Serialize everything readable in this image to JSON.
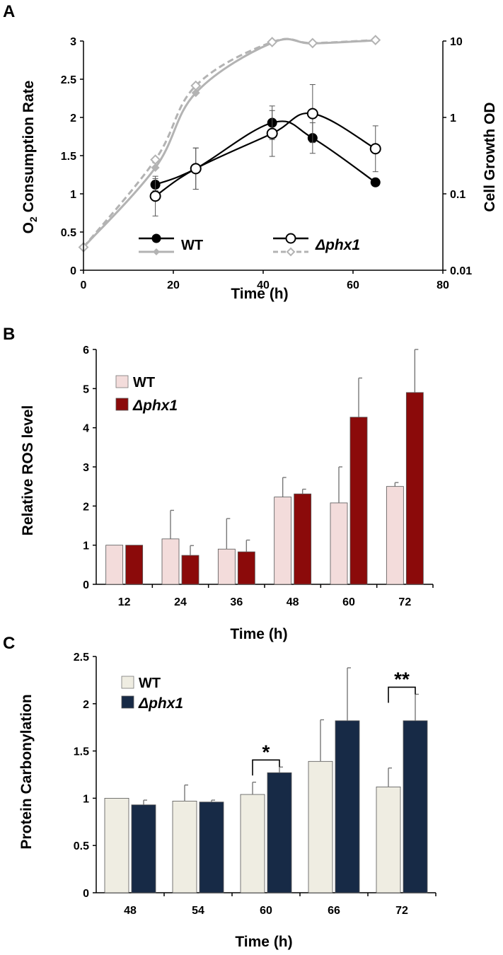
{
  "chart_data": [
    {
      "panel": "A",
      "type": "line",
      "xlabel": "Time (h)",
      "ylabel_main": "O",
      "ylabel_sub": "2",
      "ylabel_rest": " Consumption Rate",
      "y2label": "Cell Growth OD",
      "xlim": [
        0,
        80
      ],
      "ylim": [
        0,
        3
      ],
      "y2lim": [
        0.01,
        10
      ],
      "y2scale": "log",
      "xticks": [
        "0",
        "20",
        "40",
        "60",
        "80"
      ],
      "yticks": [
        "0",
        "0.5",
        "1",
        "1.5",
        "2",
        "2.5",
        "3"
      ],
      "y2ticks": [
        "0.01",
        "0.1",
        "1",
        "10"
      ],
      "legend": {
        "wt": "WT",
        "mut": "Δphx1"
      },
      "colors": {
        "o2": "#000000",
        "growth": "#b3b3b3"
      },
      "series": [
        {
          "name": "WT O2 consumption",
          "axis": "left",
          "x": [
            16,
            25,
            42,
            51,
            65
          ],
          "y": [
            1.12,
            1.33,
            1.93,
            1.73,
            1.15
          ],
          "err": [
            0.08,
            0.27,
            0.22,
            0.2,
            0.0
          ],
          "marker": "filled-circle"
        },
        {
          "name": "Δphx1 O2 consumption",
          "axis": "left",
          "x": [
            16,
            25,
            42,
            51,
            65
          ],
          "y": [
            0.97,
            1.33,
            1.79,
            2.05,
            1.59
          ],
          "err": [
            0.26,
            0.27,
            0.3,
            0.38,
            0.3
          ],
          "marker": "open-circle"
        },
        {
          "name": "WT cell growth",
          "axis": "right",
          "x": [
            0,
            16,
            25,
            42,
            51,
            65
          ],
          "y": [
            0.02,
            0.22,
            2.1,
            9.5,
            9.3,
            10.2
          ],
          "marker": "filled-diamond"
        },
        {
          "name": "Δphx1 cell growth",
          "axis": "right",
          "x": [
            0,
            16,
            25,
            42,
            51,
            65
          ],
          "y": [
            0.02,
            0.28,
            2.6,
            9.7,
            9.4,
            10.3
          ],
          "marker": "open-diamond"
        }
      ]
    },
    {
      "panel": "B",
      "type": "bar",
      "xlabel": "Time (h)",
      "ylabel": "Relative ROS level",
      "categories": [
        "12",
        "24",
        "36",
        "48",
        "60",
        "72"
      ],
      "ylim": [
        0,
        6
      ],
      "yticks": [
        "0",
        "1",
        "2",
        "3",
        "4",
        "5",
        "6"
      ],
      "legend": {
        "wt": "WT",
        "mut": "Δphx1"
      },
      "series": [
        {
          "name": "WT",
          "color": "#f3dcdb",
          "values": [
            1.0,
            1.16,
            0.9,
            2.23,
            2.08,
            2.5
          ],
          "err": [
            0.0,
            0.73,
            0.78,
            0.5,
            0.92,
            0.1
          ]
        },
        {
          "name": "Δphx1",
          "color": "#8b0a0a",
          "values": [
            1.0,
            0.74,
            0.83,
            2.31,
            4.27,
            4.9
          ],
          "err": [
            0.0,
            0.25,
            0.3,
            0.12,
            1.0,
            1.1
          ]
        }
      ]
    },
    {
      "panel": "C",
      "type": "bar",
      "xlabel": "Time (h)",
      "ylabel": "Protein Carbonylation",
      "categories": [
        "48",
        "54",
        "60",
        "66",
        "72"
      ],
      "ylim": [
        0,
        2.5
      ],
      "yticks": [
        "0",
        "0.5",
        "1",
        "1.5",
        "2",
        "2.5"
      ],
      "legend": {
        "wt": "WT",
        "mut": "Δphx1"
      },
      "series": [
        {
          "name": "WT",
          "color": "#efede2",
          "values": [
            1.0,
            0.97,
            1.04,
            1.39,
            1.12
          ],
          "err": [
            0.0,
            0.17,
            0.13,
            0.44,
            0.2
          ]
        },
        {
          "name": "Δphx1",
          "color": "#172a46",
          "values": [
            0.93,
            0.96,
            1.27,
            1.82,
            1.82
          ],
          "err": [
            0.05,
            0.02,
            0.06,
            0.56,
            0.28
          ]
        }
      ],
      "significance": [
        {
          "category": "60",
          "label": "*"
        },
        {
          "category": "72",
          "label": "**"
        }
      ]
    }
  ]
}
